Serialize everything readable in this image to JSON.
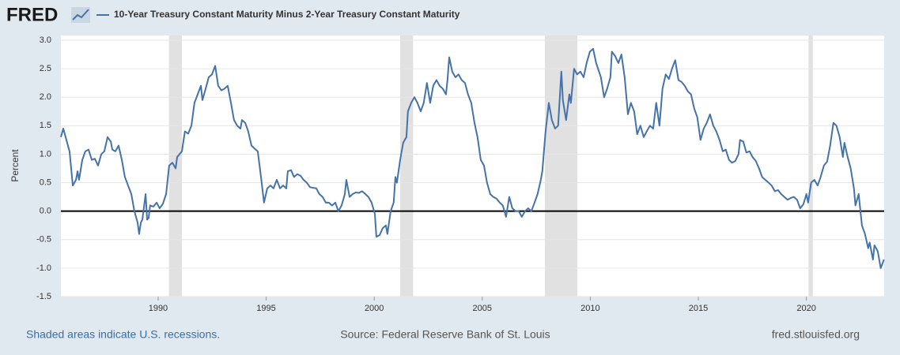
{
  "chart_data": {
    "type": "line",
    "logo": "FRED",
    "ylabel": "Percent",
    "notes": [
      "Shaded areas indicate U.S. recessions.",
      "Source: Federal Reserve Bank of St. Louis",
      "fred.stlouisfed.org"
    ],
    "x": [
      1985.5,
      1985.61,
      1985.9,
      1986.05,
      1986.2,
      1986.27,
      1986.34,
      1986.49,
      1986.63,
      1986.78,
      1986.93,
      1987.07,
      1987.22,
      1987.37,
      1987.51,
      1987.66,
      1987.81,
      1987.88,
      1988.02,
      1988.17,
      1988.32,
      1988.46,
      1988.61,
      1988.76,
      1988.9,
      1989.05,
      1989.12,
      1989.2,
      1989.27,
      1989.42,
      1989.49,
      1989.56,
      1989.63,
      1989.78,
      1989.93,
      1990.07,
      1990.22,
      1990.37,
      1990.51,
      1990.66,
      1990.81,
      1990.88,
      1991.1,
      1991.24,
      1991.39,
      1991.54,
      1991.68,
      1991.83,
      1991.98,
      1992.05,
      1992.2,
      1992.34,
      1992.49,
      1992.64,
      1992.78,
      1992.93,
      1993.07,
      1993.22,
      1993.37,
      1993.51,
      1993.66,
      1993.81,
      1993.88,
      1994.03,
      1994.17,
      1994.32,
      1994.46,
      1994.61,
      1994.76,
      1994.9,
      1995.05,
      1995.2,
      1995.34,
      1995.49,
      1995.64,
      1995.78,
      1995.93,
      1996.0,
      1996.15,
      1996.29,
      1996.44,
      1996.59,
      1996.73,
      1996.88,
      1997.03,
      1997.17,
      1997.32,
      1997.46,
      1997.61,
      1997.76,
      1997.9,
      1998.05,
      1998.2,
      1998.34,
      1998.49,
      1998.64,
      1998.71,
      1998.86,
      1999.0,
      1999.15,
      1999.29,
      1999.44,
      1999.59,
      1999.73,
      1999.88,
      2000.03,
      2000.1,
      2000.25,
      2000.39,
      2000.54,
      2000.61,
      2000.76,
      2000.9,
      2000.98,
      2001.05,
      2001.2,
      2001.34,
      2001.49,
      2001.56,
      2001.71,
      2001.86,
      2002.0,
      2002.15,
      2002.29,
      2002.44,
      2002.59,
      2002.73,
      2002.88,
      2003.03,
      2003.17,
      2003.32,
      2003.39,
      2003.47,
      2003.61,
      2003.76,
      2003.9,
      2004.05,
      2004.2,
      2004.34,
      2004.49,
      2004.64,
      2004.78,
      2004.93,
      2005.08,
      2005.22,
      2005.37,
      2005.51,
      2005.66,
      2005.81,
      2005.95,
      2006.1,
      2006.25,
      2006.39,
      2006.54,
      2006.69,
      2006.83,
      2006.98,
      2007.12,
      2007.27,
      2007.42,
      2007.56,
      2007.71,
      2007.78,
      2007.93,
      2008.08,
      2008.22,
      2008.37,
      2008.51,
      2008.66,
      2008.73,
      2008.88,
      2009.03,
      2009.1,
      2009.25,
      2009.39,
      2009.54,
      2009.69,
      2009.83,
      2009.98,
      2010.13,
      2010.27,
      2010.49,
      2010.64,
      2010.78,
      2010.93,
      2011.0,
      2011.15,
      2011.3,
      2011.44,
      2011.59,
      2011.74,
      2011.88,
      2012.03,
      2012.17,
      2012.32,
      2012.47,
      2012.61,
      2012.76,
      2012.91,
      2013.05,
      2013.2,
      2013.34,
      2013.49,
      2013.64,
      2013.78,
      2013.93,
      2014.08,
      2014.22,
      2014.37,
      2014.52,
      2014.66,
      2014.81,
      2014.95,
      2015.1,
      2015.25,
      2015.39,
      2015.54,
      2015.69,
      2015.83,
      2015.98,
      2016.13,
      2016.27,
      2016.42,
      2016.56,
      2016.71,
      2016.86,
      2016.93,
      2017.08,
      2017.22,
      2017.37,
      2017.51,
      2017.66,
      2017.81,
      2017.95,
      2018.1,
      2018.25,
      2018.39,
      2018.54,
      2018.69,
      2018.83,
      2018.98,
      2019.13,
      2019.27,
      2019.42,
      2019.57,
      2019.71,
      2019.86,
      2020.0,
      2020.08,
      2020.22,
      2020.37,
      2020.52,
      2020.66,
      2020.81,
      2020.96,
      2021.1,
      2021.25,
      2021.39,
      2021.54,
      2021.69,
      2021.76,
      2021.91,
      2022.05,
      2022.2,
      2022.27,
      2022.42,
      2022.57,
      2022.71,
      2022.86,
      2022.93,
      2023.08,
      2023.15,
      2023.3,
      2023.44,
      2023.59
    ],
    "series": [
      {
        "name": "10-Year Treasury Constant Maturity Minus 2-Year Treasury Constant Maturity",
        "color": "#4572a7",
        "values": [
          1.3,
          1.45,
          1.05,
          0.45,
          0.55,
          0.7,
          0.55,
          0.9,
          1.05,
          1.08,
          0.9,
          0.92,
          0.8,
          1.0,
          1.05,
          1.3,
          1.22,
          1.08,
          1.05,
          1.15,
          0.9,
          0.6,
          0.45,
          0.3,
          0.0,
          -0.2,
          -0.4,
          -0.2,
          -0.15,
          0.3,
          -0.15,
          -0.12,
          0.1,
          0.08,
          0.15,
          0.05,
          0.13,
          0.3,
          0.8,
          0.85,
          0.75,
          0.95,
          1.05,
          1.4,
          1.36,
          1.5,
          1.9,
          2.05,
          2.2,
          1.95,
          2.15,
          2.35,
          2.4,
          2.55,
          2.2,
          2.12,
          2.15,
          2.2,
          1.9,
          1.6,
          1.5,
          1.45,
          1.6,
          1.55,
          1.4,
          1.15,
          1.1,
          1.05,
          0.6,
          0.15,
          0.4,
          0.45,
          0.4,
          0.55,
          0.4,
          0.45,
          0.4,
          0.7,
          0.72,
          0.6,
          0.65,
          0.62,
          0.55,
          0.5,
          0.42,
          0.41,
          0.4,
          0.3,
          0.25,
          0.15,
          0.15,
          0.1,
          0.15,
          0.0,
          0.1,
          0.3,
          0.55,
          0.25,
          0.3,
          0.33,
          0.32,
          0.35,
          0.3,
          0.25,
          0.15,
          -0.05,
          -0.45,
          -0.42,
          -0.3,
          -0.25,
          -0.4,
          0.0,
          0.15,
          0.6,
          0.5,
          0.9,
          1.2,
          1.3,
          1.75,
          1.9,
          2.0,
          1.9,
          1.75,
          1.9,
          2.25,
          1.9,
          2.2,
          2.3,
          2.2,
          2.15,
          2.05,
          2.3,
          2.7,
          2.45,
          2.35,
          2.4,
          2.3,
          2.25,
          2.05,
          1.9,
          1.55,
          1.3,
          0.9,
          0.8,
          0.5,
          0.3,
          0.25,
          0.22,
          0.15,
          0.1,
          -0.1,
          0.25,
          0.05,
          0.0,
          0.0,
          -0.1,
          0.0,
          0.05,
          0.0,
          0.15,
          0.3,
          0.55,
          0.7,
          1.4,
          1.9,
          1.6,
          1.45,
          1.5,
          2.45,
          1.95,
          1.6,
          2.05,
          1.9,
          2.5,
          2.4,
          2.45,
          2.35,
          2.6,
          2.8,
          2.85,
          2.6,
          2.35,
          2.0,
          2.15,
          2.35,
          2.8,
          2.72,
          2.6,
          2.75,
          2.35,
          1.7,
          1.9,
          1.75,
          1.35,
          1.5,
          1.3,
          1.4,
          1.5,
          1.45,
          1.9,
          1.5,
          2.15,
          2.4,
          2.32,
          2.5,
          2.65,
          2.3,
          2.27,
          2.2,
          2.1,
          2.05,
          1.8,
          1.65,
          1.25,
          1.45,
          1.55,
          1.7,
          1.5,
          1.4,
          1.25,
          1.05,
          1.08,
          0.9,
          0.85,
          0.88,
          1.0,
          1.25,
          1.22,
          1.03,
          1.05,
          0.95,
          0.88,
          0.75,
          0.6,
          0.55,
          0.5,
          0.45,
          0.35,
          0.37,
          0.3,
          0.25,
          0.2,
          0.23,
          0.25,
          0.2,
          0.05,
          0.12,
          0.3,
          0.15,
          0.5,
          0.55,
          0.45,
          0.6,
          0.8,
          0.87,
          1.15,
          1.55,
          1.5,
          1.3,
          0.95,
          1.2,
          0.95,
          0.75,
          0.4,
          0.1,
          0.3,
          -0.25,
          -0.4,
          -0.65,
          -0.55,
          -0.85,
          -0.6,
          -0.7,
          -1.0,
          -0.85
        ]
      }
    ],
    "recessions": [
      [
        1990.5,
        1991.1
      ],
      [
        2001.2,
        2001.8
      ],
      [
        2007.9,
        2009.4
      ],
      [
        2020.1,
        2020.3
      ]
    ],
    "recession_color": "#e1e1e1",
    "xlim": [
      1985.5,
      2023.6
    ],
    "xticks": [
      1990,
      1995,
      2000,
      2005,
      2010,
      2015,
      2020
    ],
    "ylim": [
      -1.5,
      3
    ],
    "yticks": [
      {
        "value": 3,
        "label": "3.0"
      },
      2.5,
      {
        "value": 2,
        "label": "2.0"
      },
      1.5,
      {
        "value": 1,
        "label": "1.0"
      },
      0.5,
      {
        "value": 0,
        "label": "0.0"
      },
      -0.5,
      {
        "value": -1,
        "label": "-1.0"
      },
      -1.5
    ],
    "grid": true,
    "zero_line": true
  }
}
